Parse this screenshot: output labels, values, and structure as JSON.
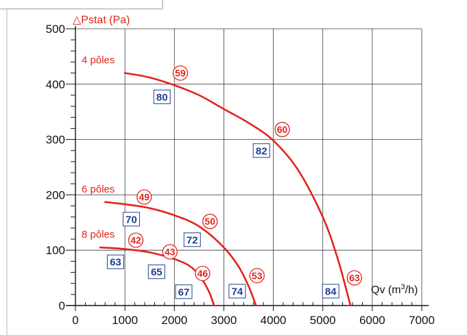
{
  "chart_data": {
    "type": "line",
    "ylabel": "△Pstat (Pa)",
    "xlabel_main": "Qv (m",
    "xlabel_sup": "3",
    "xlabel_tail": "/h)",
    "xlim": [
      0,
      7000
    ],
    "ylim": [
      0,
      500
    ],
    "xticks": [
      0,
      1000,
      2000,
      3000,
      4000,
      5000,
      6000,
      7000
    ],
    "yticks": [
      0,
      100,
      200,
      300,
      400,
      500
    ],
    "grid": true,
    "series": [
      {
        "name": "4 pôles",
        "color": "#e2231a",
        "x": [
          1000,
          1500,
          2000,
          2500,
          3000,
          3500,
          4000,
          4500,
          5000,
          5300,
          5560
        ],
        "y": [
          420,
          412,
          398,
          380,
          355,
          330,
          298,
          245,
          160,
          85,
          0
        ]
      },
      {
        "name": "6 pôles",
        "color": "#e2231a",
        "x": [
          600,
          1000,
          1500,
          2000,
          2500,
          3000,
          3300,
          3500,
          3650
        ],
        "y": [
          187,
          183,
          176,
          163,
          143,
          105,
          70,
          35,
          0
        ]
      },
      {
        "name": "8 pôles",
        "color": "#e2231a",
        "x": [
          500,
          1000,
          1500,
          2000,
          2300,
          2500,
          2700,
          2800
        ],
        "y": [
          105,
          102,
          96,
          84,
          72,
          55,
          25,
          0
        ]
      }
    ],
    "circle_labels": [
      {
        "text": "59",
        "x": 2120,
        "y": 420
      },
      {
        "text": "60",
        "x": 4180,
        "y": 318
      },
      {
        "text": "49",
        "x": 1390,
        "y": 196
      },
      {
        "text": "50",
        "x": 2720,
        "y": 152
      },
      {
        "text": "42",
        "x": 1220,
        "y": 118
      },
      {
        "text": "43",
        "x": 1910,
        "y": 97
      },
      {
        "text": "46",
        "x": 2570,
        "y": 58
      },
      {
        "text": "53",
        "x": 3670,
        "y": 54
      },
      {
        "text": "63",
        "x": 5640,
        "y": 50
      }
    ],
    "box_labels": [
      {
        "text": "80",
        "x": 1750,
        "y": 377
      },
      {
        "text": "82",
        "x": 3760,
        "y": 280
      },
      {
        "text": "70",
        "x": 1130,
        "y": 156
      },
      {
        "text": "72",
        "x": 2360,
        "y": 119
      },
      {
        "text": "63",
        "x": 810,
        "y": 79
      },
      {
        "text": "65",
        "x": 1640,
        "y": 61
      },
      {
        "text": "67",
        "x": 2190,
        "y": 25
      },
      {
        "text": "74",
        "x": 3270,
        "y": 26
      },
      {
        "text": "84",
        "x": 5160,
        "y": 26
      }
    ]
  }
}
